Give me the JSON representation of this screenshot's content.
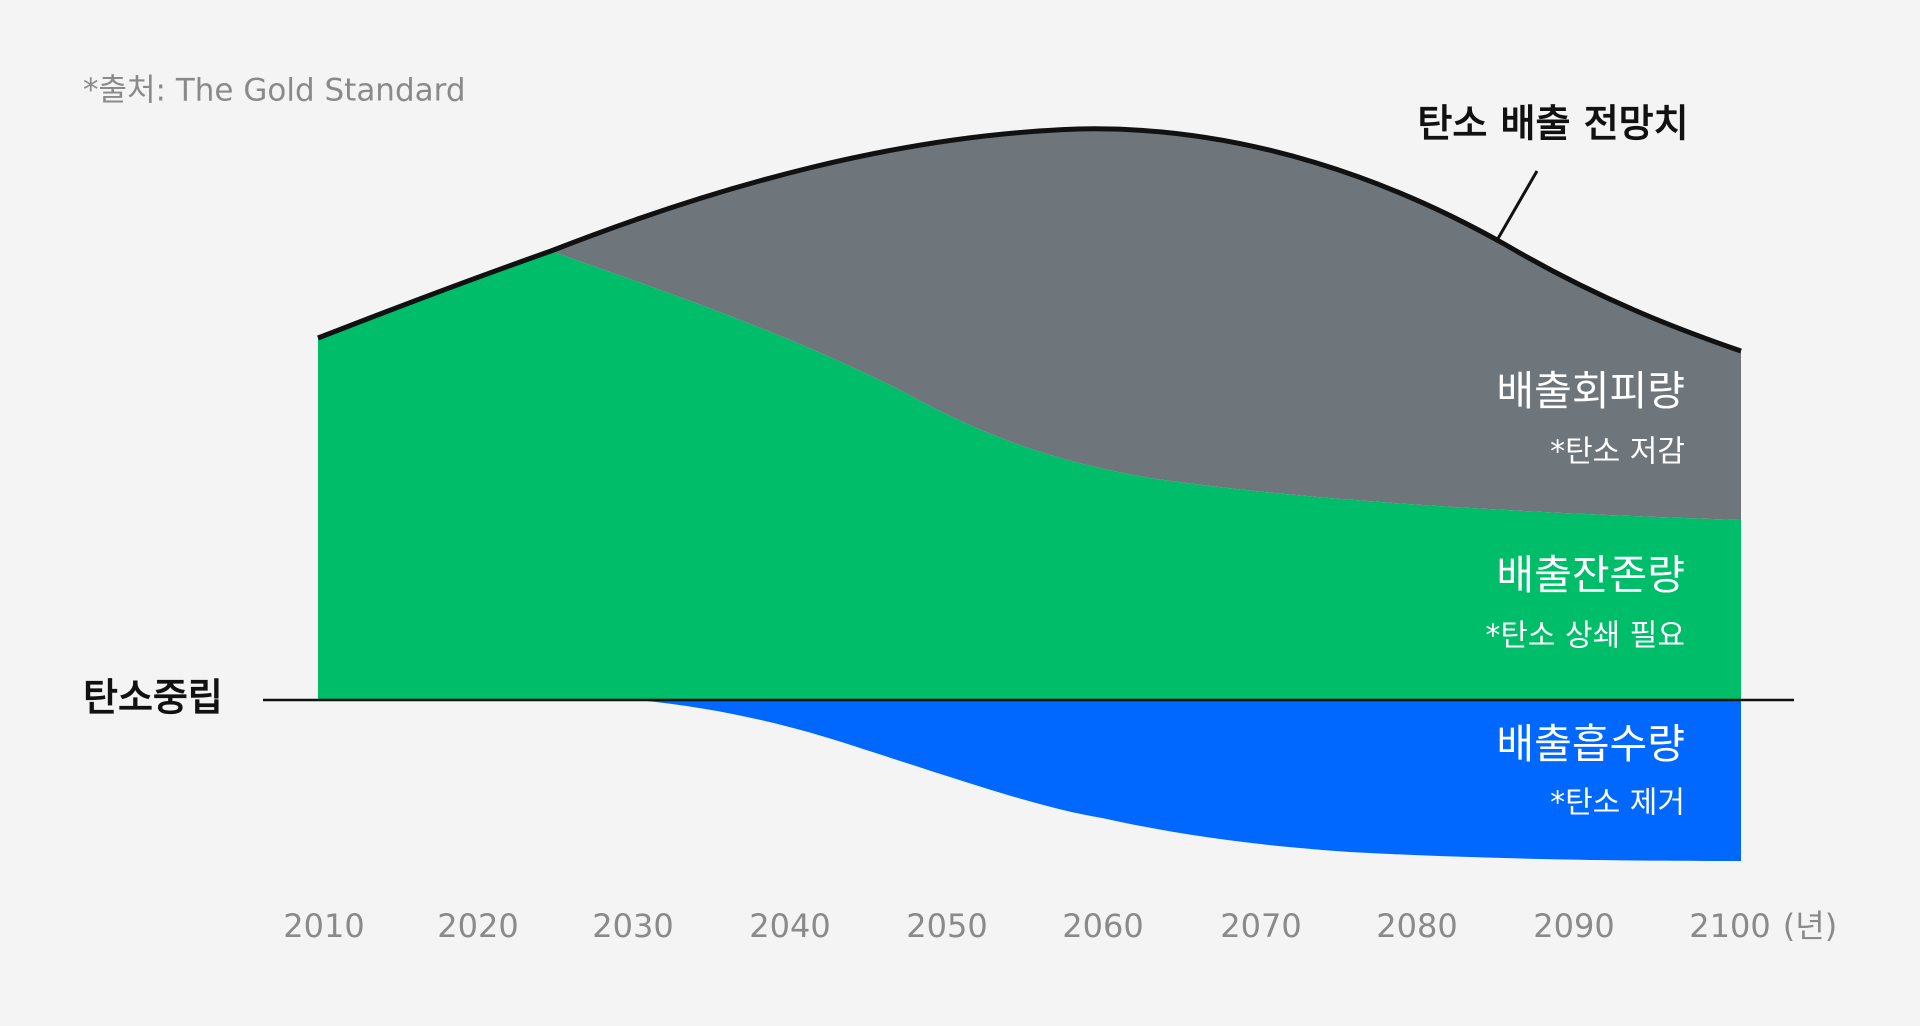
{
  "source": "*출처: The Gold Standard",
  "projection_label": "탄소 배출 전망치",
  "neutral_label": "탄소중립",
  "areas": [
    {
      "title": "배출회피량",
      "note": "*탄소 저감"
    },
    {
      "title": "배출잔존량",
      "note": "*탄소 상쇄 필요"
    },
    {
      "title": "배출흡수량",
      "note": "*탄소 제거"
    }
  ],
  "x_axis": {
    "labels": [
      "2010",
      "2020",
      "2030",
      "2040",
      "2050",
      "2060",
      "2070",
      "2080",
      "2090",
      "2100"
    ],
    "unit": "(년)"
  }
}
